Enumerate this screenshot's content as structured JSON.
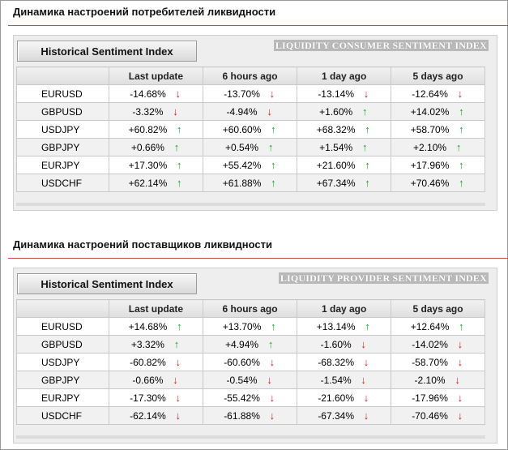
{
  "sections": [
    {
      "title": "Динамика настроений потребителей ликвидности",
      "button_label": "Historical Sentiment Index",
      "logo_text": "LIQUIDITY CONSUMER SENTIMENT INDEX",
      "columns": [
        "",
        "Last update",
        "6 hours ago",
        "1 day ago",
        "5 days ago"
      ],
      "rows": [
        {
          "pair": "EURUSD",
          "values": [
            {
              "v": "-14.68%",
              "dir": "down"
            },
            {
              "v": "-13.70%",
              "dir": "down"
            },
            {
              "v": "-13.14%",
              "dir": "down"
            },
            {
              "v": "-12.64%",
              "dir": "down"
            }
          ]
        },
        {
          "pair": "GBPUSD",
          "values": [
            {
              "v": "-3.32%",
              "dir": "down"
            },
            {
              "v": "-4.94%",
              "dir": "down"
            },
            {
              "v": "+1.60%",
              "dir": "up"
            },
            {
              "v": "+14.02%",
              "dir": "up"
            }
          ]
        },
        {
          "pair": "USDJPY",
          "values": [
            {
              "v": "+60.82%",
              "dir": "up"
            },
            {
              "v": "+60.60%",
              "dir": "up"
            },
            {
              "v": "+68.32%",
              "dir": "up"
            },
            {
              "v": "+58.70%",
              "dir": "up"
            }
          ]
        },
        {
          "pair": "GBPJPY",
          "values": [
            {
              "v": "+0.66%",
              "dir": "up"
            },
            {
              "v": "+0.54%",
              "dir": "up"
            },
            {
              "v": "+1.54%",
              "dir": "up"
            },
            {
              "v": "+2.10%",
              "dir": "up"
            }
          ]
        },
        {
          "pair": "EURJPY",
          "values": [
            {
              "v": "+17.30%",
              "dir": "up"
            },
            {
              "v": "+55.42%",
              "dir": "up"
            },
            {
              "v": "+21.60%",
              "dir": "up"
            },
            {
              "v": "+17.96%",
              "dir": "up"
            }
          ]
        },
        {
          "pair": "USDCHF",
          "values": [
            {
              "v": "+62.14%",
              "dir": "up"
            },
            {
              "v": "+61.88%",
              "dir": "up"
            },
            {
              "v": "+67.34%",
              "dir": "up"
            },
            {
              "v": "+70.46%",
              "dir": "up"
            }
          ]
        }
      ]
    },
    {
      "title": "Динамика настроений поставщиков ликвидности",
      "button_label": "Historical Sentiment Index",
      "logo_text": "LIQUIDITY PROVIDER SENTIMENT INDEX",
      "columns": [
        "",
        "Last update",
        "6 hours ago",
        "1 day ago",
        "5 days ago"
      ],
      "rows": [
        {
          "pair": "EURUSD",
          "values": [
            {
              "v": "+14.68%",
              "dir": "up"
            },
            {
              "v": "+13.70%",
              "dir": "up"
            },
            {
              "v": "+13.14%",
              "dir": "up"
            },
            {
              "v": "+12.64%",
              "dir": "up"
            }
          ]
        },
        {
          "pair": "GBPUSD",
          "values": [
            {
              "v": "+3.32%",
              "dir": "up"
            },
            {
              "v": "+4.94%",
              "dir": "up"
            },
            {
              "v": "-1.60%",
              "dir": "down"
            },
            {
              "v": "-14.02%",
              "dir": "down"
            }
          ]
        },
        {
          "pair": "USDJPY",
          "values": [
            {
              "v": "-60.82%",
              "dir": "down"
            },
            {
              "v": "-60.60%",
              "dir": "down"
            },
            {
              "v": "-68.32%",
              "dir": "down"
            },
            {
              "v": "-58.70%",
              "dir": "down"
            }
          ]
        },
        {
          "pair": "GBPJPY",
          "values": [
            {
              "v": "-0.66%",
              "dir": "down"
            },
            {
              "v": "-0.54%",
              "dir": "down"
            },
            {
              "v": "-1.54%",
              "dir": "down"
            },
            {
              "v": "-2.10%",
              "dir": "down"
            }
          ]
        },
        {
          "pair": "EURJPY",
          "values": [
            {
              "v": "-17.30%",
              "dir": "down"
            },
            {
              "v": "-55.42%",
              "dir": "down"
            },
            {
              "v": "-21.60%",
              "dir": "down"
            },
            {
              "v": "-17.96%",
              "dir": "down"
            }
          ]
        },
        {
          "pair": "USDCHF",
          "values": [
            {
              "v": "-62.14%",
              "dir": "down"
            },
            {
              "v": "-61.88%",
              "dir": "down"
            },
            {
              "v": "-67.34%",
              "dir": "down"
            },
            {
              "v": "-70.46%",
              "dir": "down"
            }
          ]
        }
      ]
    }
  ],
  "arrows": {
    "up": "↑",
    "down": "↓"
  },
  "colors": {
    "up": "#1fa32a",
    "down": "#d11f1f",
    "title_rule": "#c84a4a"
  }
}
